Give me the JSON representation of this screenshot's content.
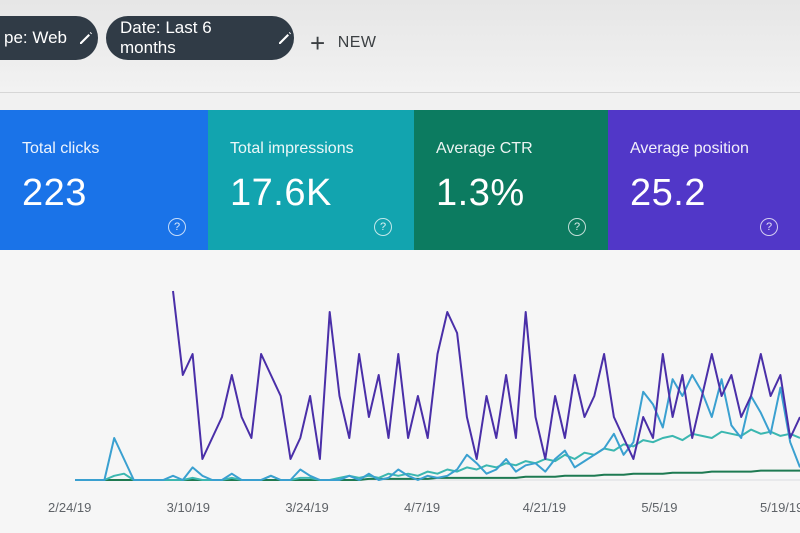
{
  "filters": {
    "type_chip": "pe: Web",
    "date_chip": "Date: Last 6 months",
    "new_label": "NEW",
    "new_icon": "plus-icon",
    "edit_icon": "pencil-icon"
  },
  "cards": [
    {
      "label": "Total clicks",
      "value": "223",
      "color": "#1a73e8",
      "help_icon": "?"
    },
    {
      "label": "Total impressions",
      "value": "17.6K",
      "color": "#12a4af",
      "help_icon": "?"
    },
    {
      "label": "Average CTR",
      "value": "1.3%",
      "color": "#0c7b60",
      "help_icon": "?"
    },
    {
      "label": "Average position",
      "value": "25.2",
      "color": "#5137c8",
      "help_icon": "?"
    }
  ],
  "chart_data": {
    "type": "line",
    "x_ticks": [
      "2/24/19",
      "3/10/19",
      "3/24/19",
      "4/7/19",
      "4/21/19",
      "5/5/19",
      "5/19/19"
    ],
    "series": [
      {
        "color": "#4a2fa8",
        "values": [
          null,
          null,
          null,
          null,
          null,
          null,
          null,
          null,
          null,
          null,
          9,
          5,
          6,
          1,
          2,
          3,
          5,
          3,
          2,
          6,
          5,
          4,
          1,
          2,
          4,
          1,
          8,
          4,
          2,
          6,
          3,
          5,
          2,
          6,
          2,
          4,
          2,
          6,
          8,
          7,
          3,
          1,
          4,
          2,
          5,
          2,
          8,
          3,
          1,
          4,
          2,
          5,
          3,
          4,
          6,
          3,
          2,
          1,
          3,
          2,
          6,
          3,
          5,
          2,
          4,
          6,
          4,
          5,
          3,
          4,
          6,
          4,
          5,
          2,
          3
        ]
      },
      {
        "color": "#3aa0d0",
        "values": [
          0,
          0,
          0,
          0,
          2,
          1,
          0,
          0,
          0,
          0,
          0.2,
          0,
          0.6,
          0.2,
          0,
          0,
          0.3,
          0,
          0,
          0,
          0.2,
          0,
          0,
          0.5,
          0.2,
          0,
          0,
          0,
          0.2,
          0,
          0.3,
          0,
          0.1,
          0.5,
          0.2,
          0,
          0.2,
          0.1,
          0.2,
          0.5,
          1.2,
          0.8,
          0.3,
          0.5,
          1.0,
          0.4,
          0.7,
          0.8,
          0.4,
          1.0,
          1.4,
          0.6,
          0.9,
          1.2,
          1.5,
          2.2,
          1.2,
          1.8,
          4.2,
          3.6,
          2.5,
          4.8,
          4.0,
          5.0,
          4.2,
          3.0,
          4.8,
          2.6,
          2.0,
          4.0,
          3.2,
          2.2,
          4.4,
          1.8,
          0.6
        ]
      },
      {
        "color": "#3bb7b0",
        "values": [
          0,
          0,
          0,
          0,
          0.2,
          0.3,
          0,
          0,
          0,
          0,
          0,
          0,
          0.1,
          0,
          0,
          0,
          0.1,
          0,
          0,
          0,
          0.2,
          0,
          0,
          0.1,
          0.1,
          0,
          0,
          0.1,
          0.2,
          0.1,
          0.2,
          0.1,
          0.3,
          0.2,
          0.3,
          0.2,
          0.4,
          0.3,
          0.5,
          0.4,
          0.6,
          0.5,
          0.7,
          0.6,
          0.8,
          0.7,
          0.9,
          0.8,
          1.0,
          0.9,
          1.2,
          1.0,
          1.3,
          1.2,
          1.5,
          1.4,
          1.7,
          1.6,
          1.9,
          1.8,
          2.0,
          2.1,
          1.9,
          2.2,
          2.1,
          2.0,
          2.3,
          2.2,
          2.1,
          2.4,
          2.2,
          2.3,
          2.1,
          2.2,
          2.0
        ]
      },
      {
        "color": "#1e7a52",
        "values": [
          0,
          0,
          0,
          0,
          0,
          0,
          0,
          0,
          0,
          0,
          0,
          0,
          0,
          0,
          0,
          0,
          0,
          0,
          0,
          0,
          0,
          0,
          0,
          0,
          0,
          0,
          0,
          0,
          0,
          0,
          0.05,
          0.05,
          0.05,
          0.05,
          0.05,
          0.05,
          0.05,
          0.1,
          0.1,
          0.1,
          0.1,
          0.1,
          0.1,
          0.1,
          0.1,
          0.1,
          0.15,
          0.15,
          0.15,
          0.15,
          0.2,
          0.2,
          0.2,
          0.2,
          0.25,
          0.25,
          0.25,
          0.3,
          0.3,
          0.3,
          0.3,
          0.35,
          0.35,
          0.35,
          0.35,
          0.4,
          0.4,
          0.4,
          0.4,
          0.4,
          0.45,
          0.45,
          0.45,
          0.45,
          0.45
        ]
      }
    ]
  }
}
